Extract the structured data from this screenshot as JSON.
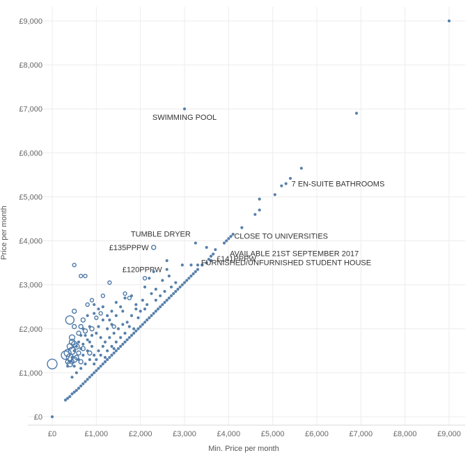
{
  "chart_data": {
    "type": "scatter",
    "xlabel": "Min. Price per month",
    "ylabel": "Price per month",
    "xlim": [
      0,
      9000
    ],
    "ylim": [
      0,
      9000
    ],
    "xticks": [
      0,
      1000,
      2000,
      3000,
      4000,
      5000,
      6000,
      7000,
      8000,
      9000
    ],
    "yticks": [
      0,
      1000,
      2000,
      3000,
      4000,
      5000,
      6000,
      7000,
      8000,
      9000
    ],
    "xtick_labels": [
      "£0",
      "£1,000",
      "£2,000",
      "£3,000",
      "£4,000",
      "£5,000",
      "£6,000",
      "£7,000",
      "£8,000",
      "£9,000"
    ],
    "ytick_labels": [
      "£0",
      "£1,000",
      "£2,000",
      "£3,000",
      "£4,000",
      "£5,000",
      "£6,000",
      "£7,000",
      "£8,000",
      "£9,000"
    ],
    "grid": true,
    "color": "#4e79a7",
    "points": [
      {
        "x": 0,
        "y": 0
      },
      {
        "x": 300,
        "y": 380
      },
      {
        "x": 350,
        "y": 420
      },
      {
        "x": 400,
        "y": 460
      },
      {
        "x": 450,
        "y": 520
      },
      {
        "x": 500,
        "y": 560
      },
      {
        "x": 550,
        "y": 600
      },
      {
        "x": 600,
        "y": 650
      },
      {
        "x": 650,
        "y": 700
      },
      {
        "x": 700,
        "y": 750
      },
      {
        "x": 750,
        "y": 800
      },
      {
        "x": 800,
        "y": 850
      },
      {
        "x": 850,
        "y": 900
      },
      {
        "x": 900,
        "y": 950
      },
      {
        "x": 950,
        "y": 1000
      },
      {
        "x": 1000,
        "y": 1050
      },
      {
        "x": 1050,
        "y": 1100
      },
      {
        "x": 1100,
        "y": 1150
      },
      {
        "x": 1150,
        "y": 1200
      },
      {
        "x": 1200,
        "y": 1250
      },
      {
        "x": 1250,
        "y": 1300
      },
      {
        "x": 1300,
        "y": 1350
      },
      {
        "x": 1350,
        "y": 1400
      },
      {
        "x": 1400,
        "y": 1450
      },
      {
        "x": 1450,
        "y": 1500
      },
      {
        "x": 1500,
        "y": 1550
      },
      {
        "x": 1550,
        "y": 1600
      },
      {
        "x": 1600,
        "y": 1650
      },
      {
        "x": 1650,
        "y": 1700
      },
      {
        "x": 1700,
        "y": 1750
      },
      {
        "x": 1750,
        "y": 1800
      },
      {
        "x": 1800,
        "y": 1850
      },
      {
        "x": 1850,
        "y": 1900
      },
      {
        "x": 1900,
        "y": 1950
      },
      {
        "x": 1950,
        "y": 2000
      },
      {
        "x": 2000,
        "y": 2050
      },
      {
        "x": 2050,
        "y": 2100
      },
      {
        "x": 2100,
        "y": 2150
      },
      {
        "x": 2150,
        "y": 2200
      },
      {
        "x": 2200,
        "y": 2250
      },
      {
        "x": 2250,
        "y": 2300
      },
      {
        "x": 2300,
        "y": 2350
      },
      {
        "x": 2350,
        "y": 2400
      },
      {
        "x": 2400,
        "y": 2450
      },
      {
        "x": 2450,
        "y": 2500
      },
      {
        "x": 2500,
        "y": 2550
      },
      {
        "x": 2550,
        "y": 2600
      },
      {
        "x": 2600,
        "y": 2650
      },
      {
        "x": 2650,
        "y": 2700
      },
      {
        "x": 2700,
        "y": 2750
      },
      {
        "x": 2750,
        "y": 2800
      },
      {
        "x": 2800,
        "y": 2850
      },
      {
        "x": 2850,
        "y": 2900
      },
      {
        "x": 2900,
        "y": 2950
      },
      {
        "x": 2950,
        "y": 3000
      },
      {
        "x": 3000,
        "y": 3050
      },
      {
        "x": 3050,
        "y": 3100
      },
      {
        "x": 3100,
        "y": 3150
      },
      {
        "x": 3150,
        "y": 3200
      },
      {
        "x": 3200,
        "y": 3250
      },
      {
        "x": 3250,
        "y": 3300
      },
      {
        "x": 3300,
        "y": 3350
      },
      {
        "x": 3400,
        "y": 3450
      },
      {
        "x": 3500,
        "y": 3500
      },
      {
        "x": 3550,
        "y": 3580
      },
      {
        "x": 3600,
        "y": 3650
      },
      {
        "x": 3650,
        "y": 3700
      },
      {
        "x": 3700,
        "y": 3800
      },
      {
        "x": 3900,
        "y": 3950
      },
      {
        "x": 3950,
        "y": 4000
      },
      {
        "x": 4000,
        "y": 4050
      },
      {
        "x": 4050,
        "y": 4100
      },
      {
        "x": 4100,
        "y": 4150
      },
      {
        "x": 4300,
        "y": 4300
      },
      {
        "x": 4600,
        "y": 4600
      },
      {
        "x": 4700,
        "y": 4700
      },
      {
        "x": 4700,
        "y": 4950
      },
      {
        "x": 5050,
        "y": 5050
      },
      {
        "x": 5200,
        "y": 5250
      },
      {
        "x": 5300,
        "y": 5300
      },
      {
        "x": 5400,
        "y": 5420
      },
      {
        "x": 5650,
        "y": 5650
      },
      {
        "x": 3000,
        "y": 7000
      },
      {
        "x": 6900,
        "y": 6900
      },
      {
        "x": 9000,
        "y": 9000
      },
      {
        "x": 3250,
        "y": 3950
      },
      {
        "x": 3500,
        "y": 3850
      },
      {
        "x": 3400,
        "y": 3450
      },
      {
        "x": 3600,
        "y": 3550
      },
      {
        "x": 2950,
        "y": 3450
      },
      {
        "x": 3150,
        "y": 3450
      },
      {
        "x": 3300,
        "y": 3450
      },
      {
        "x": 2600,
        "y": 3550
      },
      {
        "x": 2600,
        "y": 3350
      },
      {
        "x": 2500,
        "y": 3100
      },
      {
        "x": 2300,
        "y": 3300
      },
      {
        "x": 2200,
        "y": 3150
      },
      {
        "x": 2100,
        "y": 2950
      },
      {
        "x": 2250,
        "y": 2800
      },
      {
        "x": 2450,
        "y": 2750
      },
      {
        "x": 2050,
        "y": 2650
      },
      {
        "x": 1900,
        "y": 2550
      },
      {
        "x": 1800,
        "y": 2750
      },
      {
        "x": 1650,
        "y": 2700
      },
      {
        "x": 1550,
        "y": 2500
      },
      {
        "x": 1450,
        "y": 2300
      },
      {
        "x": 1350,
        "y": 2100
      },
      {
        "x": 1250,
        "y": 2000
      },
      {
        "x": 1150,
        "y": 2200
      },
      {
        "x": 1050,
        "y": 2450
      },
      {
        "x": 950,
        "y": 2550
      },
      {
        "x": 800,
        "y": 2300
      },
      {
        "x": 850,
        "y": 2050
      },
      {
        "x": 700,
        "y": 2000
      },
      {
        "x": 650,
        "y": 1850
      },
      {
        "x": 600,
        "y": 1700
      },
      {
        "x": 550,
        "y": 1600
      },
      {
        "x": 500,
        "y": 1500
      },
      {
        "x": 450,
        "y": 1350
      },
      {
        "x": 400,
        "y": 1250
      },
      {
        "x": 350,
        "y": 1150
      },
      {
        "x": 1000,
        "y": 1900
      },
      {
        "x": 1100,
        "y": 1800
      },
      {
        "x": 1200,
        "y": 1700
      },
      {
        "x": 1300,
        "y": 1800
      },
      {
        "x": 1400,
        "y": 1900
      },
      {
        "x": 1500,
        "y": 2000
      },
      {
        "x": 1600,
        "y": 2100
      },
      {
        "x": 1700,
        "y": 2150
      },
      {
        "x": 900,
        "y": 1600
      },
      {
        "x": 800,
        "y": 1500
      },
      {
        "x": 700,
        "y": 1400
      },
      {
        "x": 600,
        "y": 1300
      },
      {
        "x": 750,
        "y": 1200
      },
      {
        "x": 850,
        "y": 1300
      },
      {
        "x": 950,
        "y": 1400
      },
      {
        "x": 1050,
        "y": 1500
      },
      {
        "x": 1150,
        "y": 1600
      },
      {
        "x": 1250,
        "y": 1500
      },
      {
        "x": 1350,
        "y": 1600
      },
      {
        "x": 650,
        "y": 1100
      },
      {
        "x": 550,
        "y": 1000
      },
      {
        "x": 450,
        "y": 900
      },
      {
        "x": 500,
        "y": 1150
      },
      {
        "x": 700,
        "y": 1650
      },
      {
        "x": 800,
        "y": 1750
      },
      {
        "x": 900,
        "y": 1850
      },
      {
        "x": 1000,
        "y": 1300
      },
      {
        "x": 1100,
        "y": 1400
      },
      {
        "x": 1200,
        "y": 1350
      },
      {
        "x": 1400,
        "y": 1550
      },
      {
        "x": 1450,
        "y": 1700
      },
      {
        "x": 1550,
        "y": 1800
      },
      {
        "x": 1650,
        "y": 1900
      },
      {
        "x": 1750,
        "y": 2050
      },
      {
        "x": 1850,
        "y": 2000
      },
      {
        "x": 1950,
        "y": 2250
      },
      {
        "x": 2000,
        "y": 2400
      },
      {
        "x": 2150,
        "y": 2550
      },
      {
        "x": 2350,
        "y": 2650
      },
      {
        "x": 2550,
        "y": 2850
      },
      {
        "x": 2700,
        "y": 2950
      },
      {
        "x": 2800,
        "y": 3050
      },
      {
        "x": 1250,
        "y": 2300
      },
      {
        "x": 1350,
        "y": 2400
      },
      {
        "x": 1450,
        "y": 2600
      },
      {
        "x": 1150,
        "y": 2500
      },
      {
        "x": 950,
        "y": 2350
      },
      {
        "x": 650,
        "y": 1550
      },
      {
        "x": 750,
        "y": 1850
      },
      {
        "x": 1050,
        "y": 2050
      },
      {
        "x": 850,
        "y": 1700
      },
      {
        "x": 950,
        "y": 1200
      },
      {
        "x": 1300,
        "y": 2200
      },
      {
        "x": 1600,
        "y": 2400
      },
      {
        "x": 1800,
        "y": 2300
      },
      {
        "x": 1900,
        "y": 2450
      },
      {
        "x": 2100,
        "y": 2450
      },
      {
        "x": 2350,
        "y": 2900
      },
      {
        "x": 2650,
        "y": 3200
      }
    ],
    "hollow_points": [
      {
        "x": 0,
        "y": 1200,
        "size": 7
      },
      {
        "x": 300,
        "y": 1400,
        "size": 6
      },
      {
        "x": 350,
        "y": 1450,
        "size": 5
      },
      {
        "x": 400,
        "y": 1350,
        "size": 5
      },
      {
        "x": 500,
        "y": 1300,
        "size": 4
      },
      {
        "x": 450,
        "y": 1500,
        "size": 5
      },
      {
        "x": 400,
        "y": 2200,
        "size": 6
      },
      {
        "x": 400,
        "y": 1600,
        "size": 4
      },
      {
        "x": 450,
        "y": 1800,
        "size": 4
      },
      {
        "x": 500,
        "y": 1650,
        "size": 4
      },
      {
        "x": 450,
        "y": 1700,
        "size": 4
      },
      {
        "x": 500,
        "y": 3450,
        "size": 2.5
      },
      {
        "x": 650,
        "y": 3200,
        "size": 2.5
      },
      {
        "x": 500,
        "y": 2400,
        "size": 3
      },
      {
        "x": 400,
        "y": 1200,
        "size": 4
      },
      {
        "x": 350,
        "y": 1250,
        "size": 3
      },
      {
        "x": 450,
        "y": 1250,
        "size": 3
      },
      {
        "x": 550,
        "y": 1350,
        "size": 3
      },
      {
        "x": 600,
        "y": 1450,
        "size": 3
      },
      {
        "x": 700,
        "y": 1550,
        "size": 3
      },
      {
        "x": 600,
        "y": 1900,
        "size": 3
      },
      {
        "x": 700,
        "y": 2200,
        "size": 3
      },
      {
        "x": 650,
        "y": 2050,
        "size": 3
      },
      {
        "x": 500,
        "y": 2050,
        "size": 3
      },
      {
        "x": 550,
        "y": 1600,
        "size": 4
      },
      {
        "x": 750,
        "y": 1950,
        "size": 3
      },
      {
        "x": 900,
        "y": 2000,
        "size": 3
      },
      {
        "x": 800,
        "y": 2550,
        "size": 2.5
      },
      {
        "x": 900,
        "y": 2650,
        "size": 2.5
      },
      {
        "x": 1150,
        "y": 2750,
        "size": 2.5
      },
      {
        "x": 1300,
        "y": 3050,
        "size": 2.5
      },
      {
        "x": 1650,
        "y": 2800,
        "size": 2.5
      },
      {
        "x": 1750,
        "y": 2700,
        "size": 2.5
      },
      {
        "x": 1100,
        "y": 2350,
        "size": 2.5
      },
      {
        "x": 1400,
        "y": 2050,
        "size": 2.5
      },
      {
        "x": 1000,
        "y": 2250,
        "size": 2.5
      },
      {
        "x": 2300,
        "y": 3850,
        "size": 3
      },
      {
        "x": 2100,
        "y": 3150,
        "size": 2.5
      },
      {
        "x": 750,
        "y": 3200,
        "size": 2.5
      },
      {
        "x": 850,
        "y": 1450,
        "size": 3
      },
      {
        "x": 650,
        "y": 1250,
        "size": 3
      }
    ],
    "annotations": [
      {
        "text": "SWIMMING POOL",
        "x": 3000,
        "y": 7000,
        "anchor": "middle",
        "dy": 16
      },
      {
        "text": "7 EN-SUITE BATHROOMS",
        "x": 5300,
        "y": 5300,
        "anchor": "start",
        "dy": 4
      },
      {
        "text": "TUMBLE DRYER",
        "x": 3250,
        "y": 3950,
        "anchor": "end",
        "dy": -9
      },
      {
        "text": "CLOSE TO UNIVERSITIES",
        "x": 4000,
        "y": 4050,
        "anchor": "start",
        "dy": 0
      },
      {
        "text": "£135PPPW",
        "x": 2300,
        "y": 3850,
        "anchor": "end",
        "dy": 4
      },
      {
        "text": "AVAILABLE 21ST SEPTEMBER 2017",
        "x": 3900,
        "y": 3950,
        "anchor": "start",
        "dy": 19
      },
      {
        "text": "£141PPPW",
        "x": 3600,
        "y": 3550,
        "anchor": "start",
        "dy": 1
      },
      {
        "text": "£120PPPW",
        "x": 2600,
        "y": 3350,
        "anchor": "end",
        "dy": 4
      },
      {
        "text": "FURNISHED/UNFURNISHED STUDENT HOUSE",
        "x": 3250,
        "y": 3300,
        "anchor": "start",
        "dy": -9
      }
    ]
  }
}
